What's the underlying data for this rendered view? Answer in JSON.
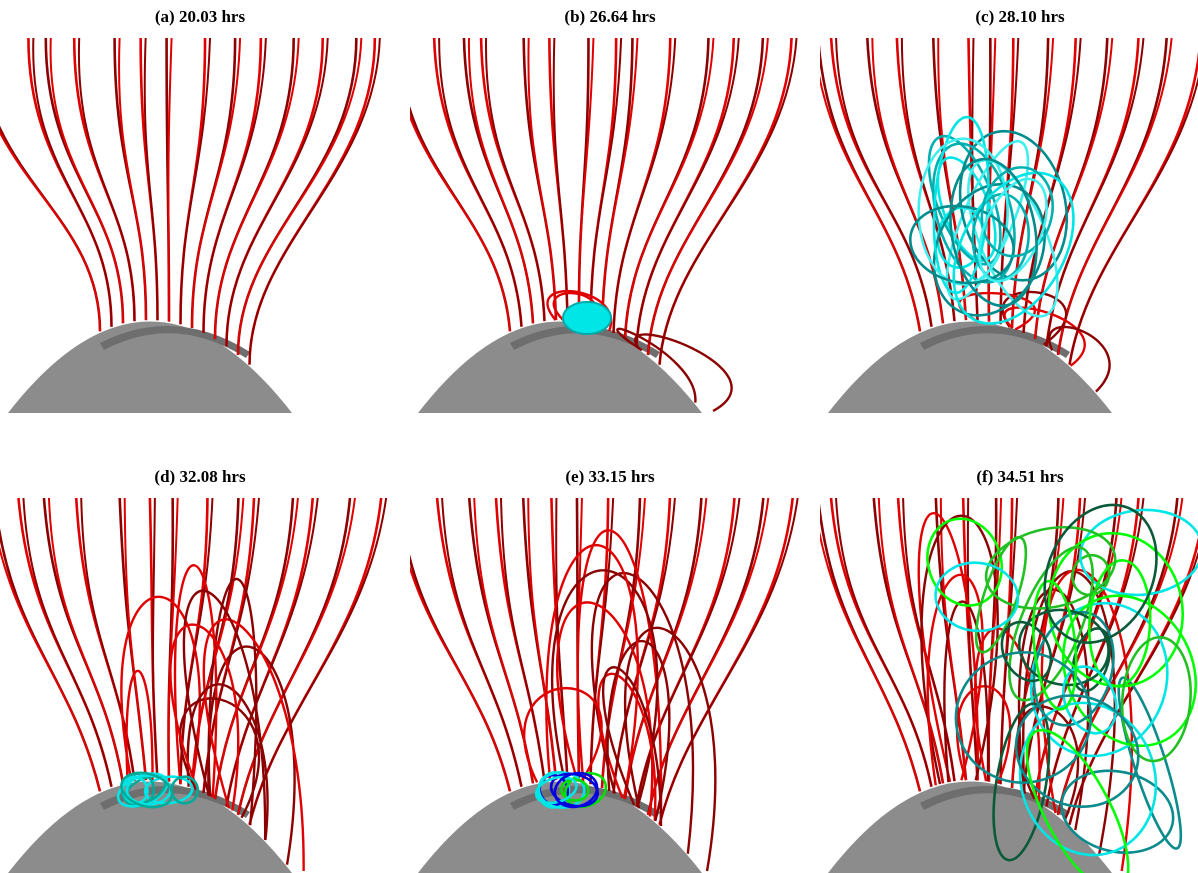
{
  "panels": [
    {
      "title": "(a) 20.03 hrs"
    },
    {
      "title": "(b) 26.64 hrs"
    },
    {
      "title": "(c) 28.10 hrs"
    },
    {
      "title": "(d) 32.08 hrs"
    },
    {
      "title": "(e) 33.15 hrs"
    },
    {
      "title": "(f) 34.51 hrs"
    }
  ]
}
